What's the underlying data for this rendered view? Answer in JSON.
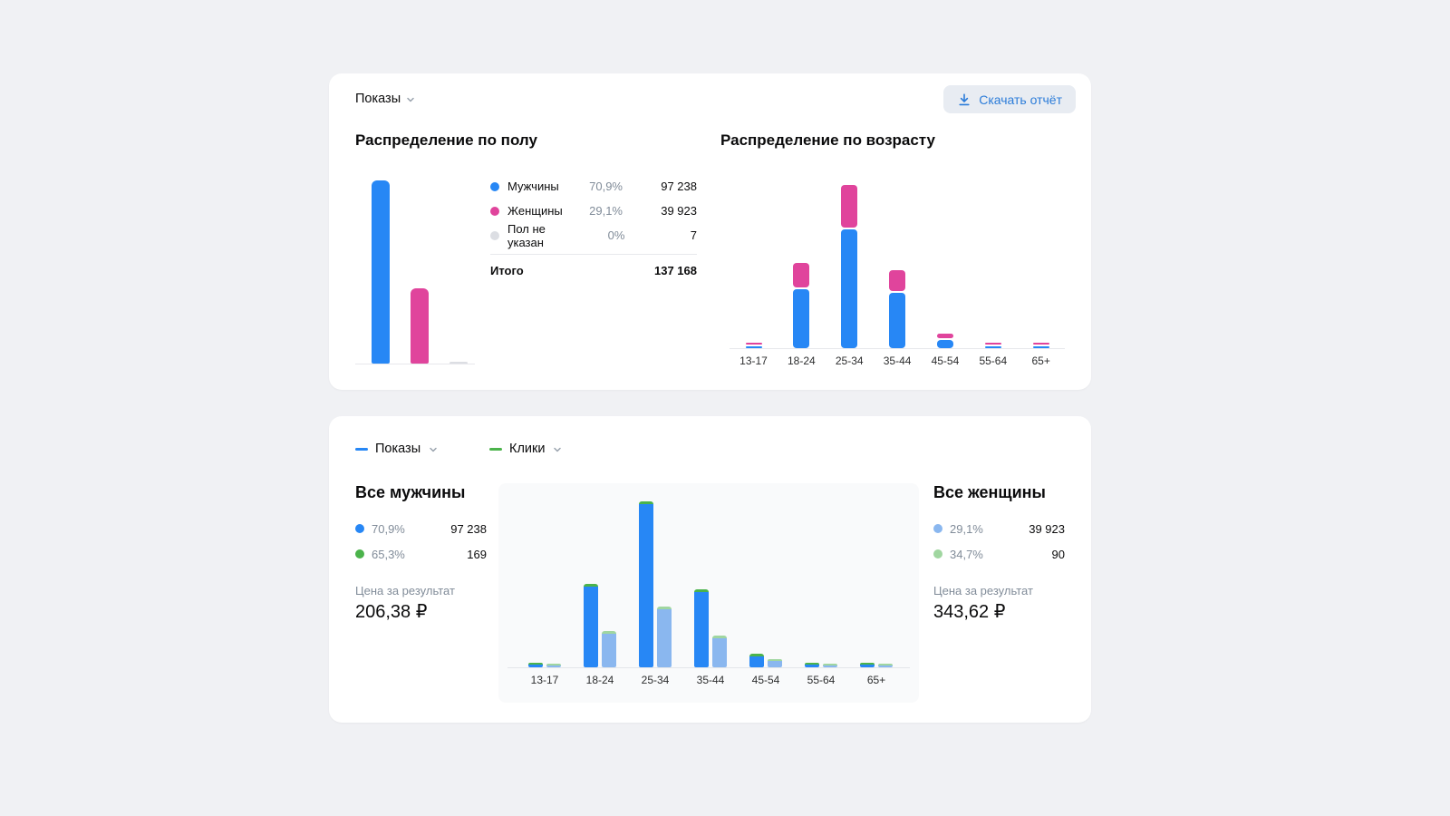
{
  "page": {
    "background": "#f0f1f4"
  },
  "top_card": {
    "metric_dropdown": {
      "label": "Показы"
    },
    "download_button": {
      "label": "Скачать отчёт"
    },
    "gender": {
      "title": "Распределение по полу",
      "legend": [
        {
          "label": "Мужчины",
          "percent": "70,9%",
          "value": "97 238",
          "color": "#2787f5"
        },
        {
          "label": "Женщины",
          "percent": "29,1%",
          "value": "39 923",
          "color": "#e0449c"
        },
        {
          "label": "Пол не указан",
          "percent": "0%",
          "value": "7",
          "color": "#dcdee3"
        }
      ],
      "total": {
        "label": "Итого",
        "value": "137 168"
      }
    },
    "age": {
      "title": "Распределение по возрасту"
    }
  },
  "bottom_card": {
    "series_dropdowns": [
      {
        "label": "Показы",
        "color": "#2787f5"
      },
      {
        "label": "Клики",
        "color": "#4bb34b"
      }
    ],
    "men": {
      "title": "Все мужчины",
      "rows": [
        {
          "percent": "70,9%",
          "value": "97 238",
          "color": "#2787f5"
        },
        {
          "percent": "65,3%",
          "value": "169",
          "color": "#4bb34b"
        }
      ],
      "price_label": "Цена за результат",
      "price_value": "206,38 ₽"
    },
    "women": {
      "title": "Все женщины",
      "rows": [
        {
          "percent": "29,1%",
          "value": "39 923",
          "color": "#8ab7ef"
        },
        {
          "percent": "34,7%",
          "value": "90",
          "color": "#a0d6a0"
        }
      ],
      "price_label": "Цена за результат",
      "price_value": "343,62 ₽"
    }
  },
  "chart_data": [
    {
      "type": "bar",
      "title": "Распределение по полу",
      "categories": [
        "Мужчины",
        "Женщины",
        "Пол не указан"
      ],
      "values": [
        97238,
        39923,
        7
      ],
      "colors": [
        "#2787f5",
        "#e0449c",
        "#dcdee3"
      ],
      "ylim": [
        0,
        97238
      ],
      "grid": false
    },
    {
      "type": "bar",
      "stacked": true,
      "title": "Распределение по возрасту",
      "categories": [
        "13-17",
        "18-24",
        "25-34",
        "35-44",
        "45-54",
        "55-64",
        "65+"
      ],
      "series": [
        {
          "name": "Мужчины",
          "color": "#2787f5",
          "values": [
            700,
            23000,
            46500,
            21500,
            3100,
            800,
            700
          ]
        },
        {
          "name": "Женщины",
          "color": "#e0449c",
          "values": [
            300,
            9500,
            16500,
            8200,
            1900,
            350,
            300
          ]
        }
      ],
      "grid": false
    },
    {
      "type": "bar",
      "grouped": true,
      "title": "Показы и клики по возрасту",
      "categories": [
        "13-17",
        "18-24",
        "25-34",
        "35-44",
        "45-54",
        "55-64",
        "65+"
      ],
      "series": [
        {
          "name": "Все мужчины — показы",
          "color": "#2787f5",
          "values": [
            700,
            23000,
            46500,
            21500,
            3100,
            800,
            700
          ]
        },
        {
          "name": "Все женщины — показы",
          "color": "#8ab7ef",
          "values": [
            300,
            9500,
            16500,
            8200,
            1900,
            350,
            300
          ]
        },
        {
          "name": "Все мужчины — клики",
          "color": "#4bb34b",
          "values": [
            1,
            35,
            75,
            40,
            12,
            3,
            3
          ]
        },
        {
          "name": "Все женщины — клики",
          "color": "#a0d6a0",
          "values": [
            1,
            20,
            35,
            20,
            10,
            2,
            2
          ]
        }
      ],
      "grid": false
    }
  ]
}
